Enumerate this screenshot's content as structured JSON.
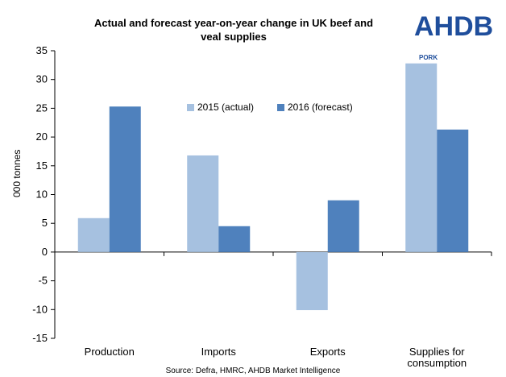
{
  "chart_data": {
    "type": "bar",
    "title": "Actual and forecast year-on-year change in UK beef and veal supplies",
    "ylabel": "000 tonnes",
    "xlabel": "",
    "ylim": [
      -15,
      35
    ],
    "yticks": [
      35,
      30,
      25,
      20,
      15,
      10,
      5,
      0,
      -5,
      -10,
      -15
    ],
    "categories": [
      [
        "Production"
      ],
      [
        "Imports"
      ],
      [
        "Exports"
      ],
      [
        "Supplies for",
        "consumption"
      ]
    ],
    "series": [
      {
        "name": "2015 (actual)",
        "color": "#a6c1e0",
        "values": [
          5.9,
          16.8,
          -10.1,
          32.8
        ]
      },
      {
        "name": "2016 (forecast)",
        "color": "#4f81bd",
        "values": [
          25.3,
          4.5,
          9.0,
          21.3
        ]
      }
    ],
    "legend_position": "top-center",
    "grid": false,
    "source": "Source: Defra, HMRC, AHDB Market Intelligence"
  },
  "logo": {
    "brand": "AHDB",
    "sub": "PORK",
    "color": "#1f4e9c"
  }
}
